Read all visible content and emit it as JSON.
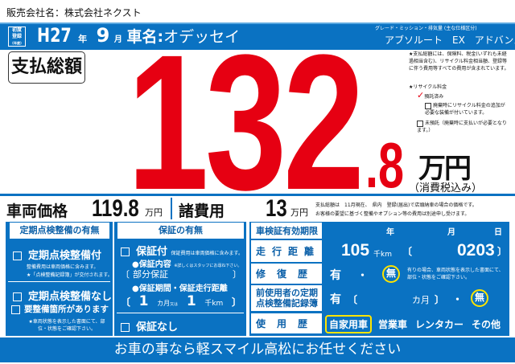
{
  "dealer": {
    "label": "販売会社名：",
    "name": "株式会社ネクスト"
  },
  "header": {
    "first_reg_badge": [
      "初度",
      "登録",
      "(年度)"
    ],
    "year": "H27",
    "year_unit": "年",
    "month": "9",
    "month_unit": "月",
    "car_label": "車名:",
    "car_name": "オデッセイ",
    "grade_label": "グレード・ミッション・排気量 (主な仕様区分)",
    "grade": "アブソルート　EX　アドバンス"
  },
  "total": {
    "label": "支払総額",
    "integer": "132",
    "decimal": ".8",
    "unit": "万円",
    "tax_note": "（消費税込み）",
    "color": "#e60012"
  },
  "notes": {
    "total_note": "★支払総額には、保険料、税金(いずれも未経過相当含む)、リサイクル料金相当額、登録等に伴う費用等すべての費用が含まれています。",
    "recycle_title": "★リサイクル料金",
    "deposited": "預託済み",
    "deposited_checked": true,
    "extra": "廃棄時にリサイクル料金の追加が必要な装備が付いています。",
    "not_deposited": "未預託（廃棄時に支払いが必要となります。）"
  },
  "price_row": {
    "vehicle_label": "車両価格",
    "vehicle_price": "119.8",
    "vehicle_unit": "万円",
    "fees_label": "諸費用",
    "fees": "13",
    "fees_unit": "万円",
    "note1": "支払総額は　11月現在、　県内　登録(届出)で店頭納車の場合の価格です。",
    "note2": "お客様の要望に基づく整備やオプション等の費用は別途申し受けます。"
  },
  "inspection": {
    "title": "定期点検整備の有無",
    "with": "定期点検整備付",
    "with_note1": "整備費用は車両価格に含みます。",
    "with_note2": "★「点検整備記録簿」が交付されます。",
    "without": "定期点検整備なし",
    "needs": "要整備箇所があります",
    "needs_note": "★車両状態を表示した書面にて、部位・状態をご確認下さい。"
  },
  "warranty": {
    "title": "保証の有無",
    "with": "保証付",
    "with_note": "保証費用は車両価格に含みます。",
    "content_label": "●保証内容",
    "content_note": "※詳しくはスタッフにお尋ね下さい。",
    "content": "部分保証",
    "period_label": "●保証期間・保証走行距離",
    "months": "1",
    "months_unit": "カ月",
    "or": "又は",
    "km": "1",
    "km_unit": "千km",
    "none": "保証なし"
  },
  "vehicle_info": {
    "inspection_label": "車検証有効期限",
    "year_unit": "年",
    "month_unit": "月",
    "day_unit": "日",
    "mileage_label": "走行距離",
    "mileage": "105",
    "mileage_unit": "千km",
    "mileage_sub": "0203",
    "repair_label": "修復歴",
    "yes": "有",
    "dot": "・",
    "no": "無",
    "repair_value": "無",
    "repair_note": "有りの場合、車両状態を表示した書面にて、部位・状態をご確認下さい。",
    "record_label": "前使用者の定期点検整備記録簿",
    "record_months_unit": "カ月",
    "record_value": "無",
    "usage_label": "使用歴",
    "usage_options": [
      "自家用車",
      "営業車",
      "レンタカー",
      "その他"
    ],
    "usage_selected": "自家用車"
  },
  "banner": "お車の事なら軽スマイル高松にお任せください",
  "colors": {
    "blue": "#0a72c2",
    "red": "#e60012",
    "highlight": "#ffe400"
  }
}
